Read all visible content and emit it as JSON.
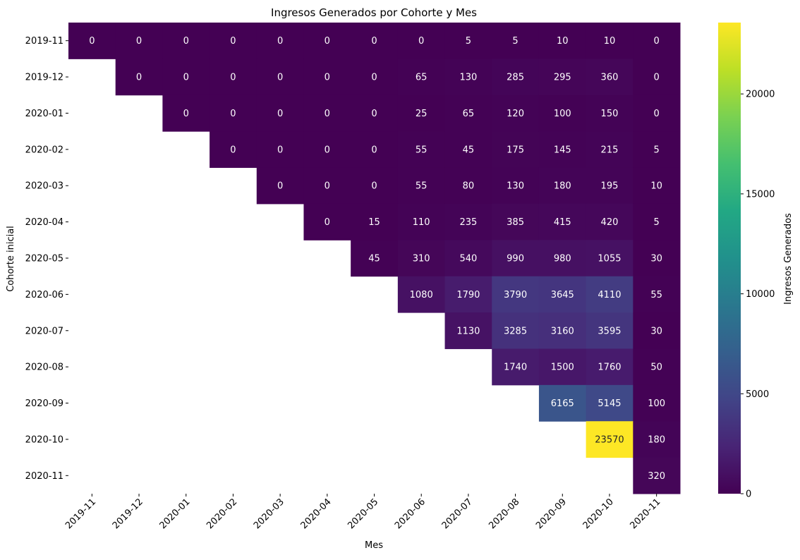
{
  "chart_data": {
    "type": "heatmap",
    "title": "Ingresos Generados por Cohorte y Mes",
    "xlabel": "Mes",
    "ylabel": "Cohorte inicial",
    "x_categories": [
      "2019-11",
      "2019-12",
      "2020-01",
      "2020-02",
      "2020-03",
      "2020-04",
      "2020-05",
      "2020-06",
      "2020-07",
      "2020-08",
      "2020-09",
      "2020-10",
      "2020-11"
    ],
    "y_categories": [
      "2019-11",
      "2019-12",
      "2020-01",
      "2020-02",
      "2020-03",
      "2020-04",
      "2020-05",
      "2020-06",
      "2020-07",
      "2020-08",
      "2020-09",
      "2020-10",
      "2020-11"
    ],
    "values": [
      [
        0,
        0,
        0,
        0,
        0,
        0,
        0,
        0,
        5,
        5,
        10,
        10,
        0
      ],
      [
        null,
        0,
        0,
        0,
        0,
        0,
        0,
        65,
        130,
        285,
        295,
        360,
        0
      ],
      [
        null,
        null,
        0,
        0,
        0,
        0,
        0,
        25,
        65,
        120,
        100,
        150,
        0
      ],
      [
        null,
        null,
        null,
        0,
        0,
        0,
        0,
        55,
        45,
        175,
        145,
        215,
        5
      ],
      [
        null,
        null,
        null,
        null,
        0,
        0,
        0,
        55,
        80,
        130,
        180,
        195,
        10
      ],
      [
        null,
        null,
        null,
        null,
        null,
        0,
        15,
        110,
        235,
        385,
        415,
        420,
        5
      ],
      [
        null,
        null,
        null,
        null,
        null,
        null,
        45,
        310,
        540,
        990,
        980,
        1055,
        30
      ],
      [
        null,
        null,
        null,
        null,
        null,
        null,
        null,
        1080,
        1790,
        3790,
        3645,
        4110,
        55
      ],
      [
        null,
        null,
        null,
        null,
        null,
        null,
        null,
        null,
        1130,
        3285,
        3160,
        3595,
        30
      ],
      [
        null,
        null,
        null,
        null,
        null,
        null,
        null,
        null,
        null,
        1740,
        1500,
        1760,
        50
      ],
      [
        null,
        null,
        null,
        null,
        null,
        null,
        null,
        null,
        null,
        null,
        6165,
        5145,
        100
      ],
      [
        null,
        null,
        null,
        null,
        null,
        null,
        null,
        null,
        null,
        null,
        null,
        23570,
        180
      ],
      [
        null,
        null,
        null,
        null,
        null,
        null,
        null,
        null,
        null,
        null,
        null,
        null,
        320
      ]
    ],
    "colorbar": {
      "label": "Ingresos Generados",
      "min": 0,
      "max": 23570,
      "ticks": [
        0,
        5000,
        10000,
        15000,
        20000
      ],
      "colormap": "viridis"
    },
    "grid": false
  }
}
